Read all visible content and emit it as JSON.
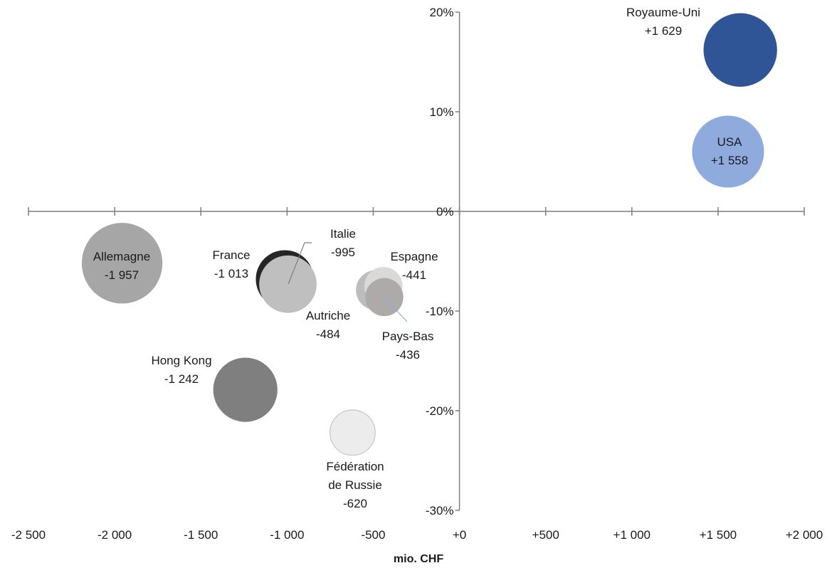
{
  "chart_data": {
    "type": "scatter",
    "subtype": "bubble",
    "title": "",
    "xlabel": "mio. CHF",
    "ylabel": "",
    "xlim": [
      -2500,
      2000
    ],
    "ylim": [
      -30,
      20
    ],
    "x_ticks": [
      "-2 500",
      "-2 000",
      "-1 500",
      "-1 000",
      "-500",
      "+0",
      "+500",
      "+1 000",
      "+1 500",
      "+2 000"
    ],
    "x_tick_values": [
      -2500,
      -2000,
      -1500,
      -1000,
      -500,
      0,
      500,
      1000,
      1500,
      2000
    ],
    "y_ticks": [
      "20%",
      "10%",
      "0%",
      "-10%",
      "-20%",
      "-30%"
    ],
    "y_tick_values": [
      20,
      10,
      0,
      -10,
      -20,
      -30
    ],
    "grid": false,
    "points": [
      {
        "name": "Allemagne",
        "value_label": "-1 957",
        "x": -1957,
        "y": -5.2,
        "size": 1957,
        "color": "#a6a6a6"
      },
      {
        "name": "France",
        "value_label": "-1 013",
        "x": -1013,
        "y": -6.8,
        "size": 1013,
        "color": "#262626"
      },
      {
        "name": "Italie",
        "value_label": "-995",
        "x": -995,
        "y": -7.3,
        "size": 995,
        "color": "#bfbfbf"
      },
      {
        "name": "Hong Kong",
        "value_label": "-1 242",
        "x": -1242,
        "y": -17.9,
        "size": 1242,
        "color": "#7f7f7f"
      },
      {
        "name": "Fédération de Russie",
        "value_label": "-620",
        "x": -620,
        "y": -22.2,
        "size": 620,
        "color": "#ececec"
      },
      {
        "name": "Autriche",
        "value_label": "-484",
        "x": -484,
        "y": -7.9,
        "size": 484,
        "color": "#bdbdbd"
      },
      {
        "name": "Espagne",
        "value_label": "-441",
        "x": -441,
        "y": -7.5,
        "size": 441,
        "color": "#d9d9d9"
      },
      {
        "name": "Pays-Bas",
        "value_label": "-436",
        "x": -436,
        "y": -8.6,
        "size": 436,
        "color": "#aeaaaa"
      },
      {
        "name": "Royaume-Uni",
        "value_label": "+1 629",
        "x": 1629,
        "y": 16.2,
        "size": 1629,
        "color": "#2f5597"
      },
      {
        "name": "USA",
        "value_label": "+1 558",
        "x": 1558,
        "y": 6.0,
        "size": 1558,
        "color": "#8faadc"
      }
    ]
  }
}
